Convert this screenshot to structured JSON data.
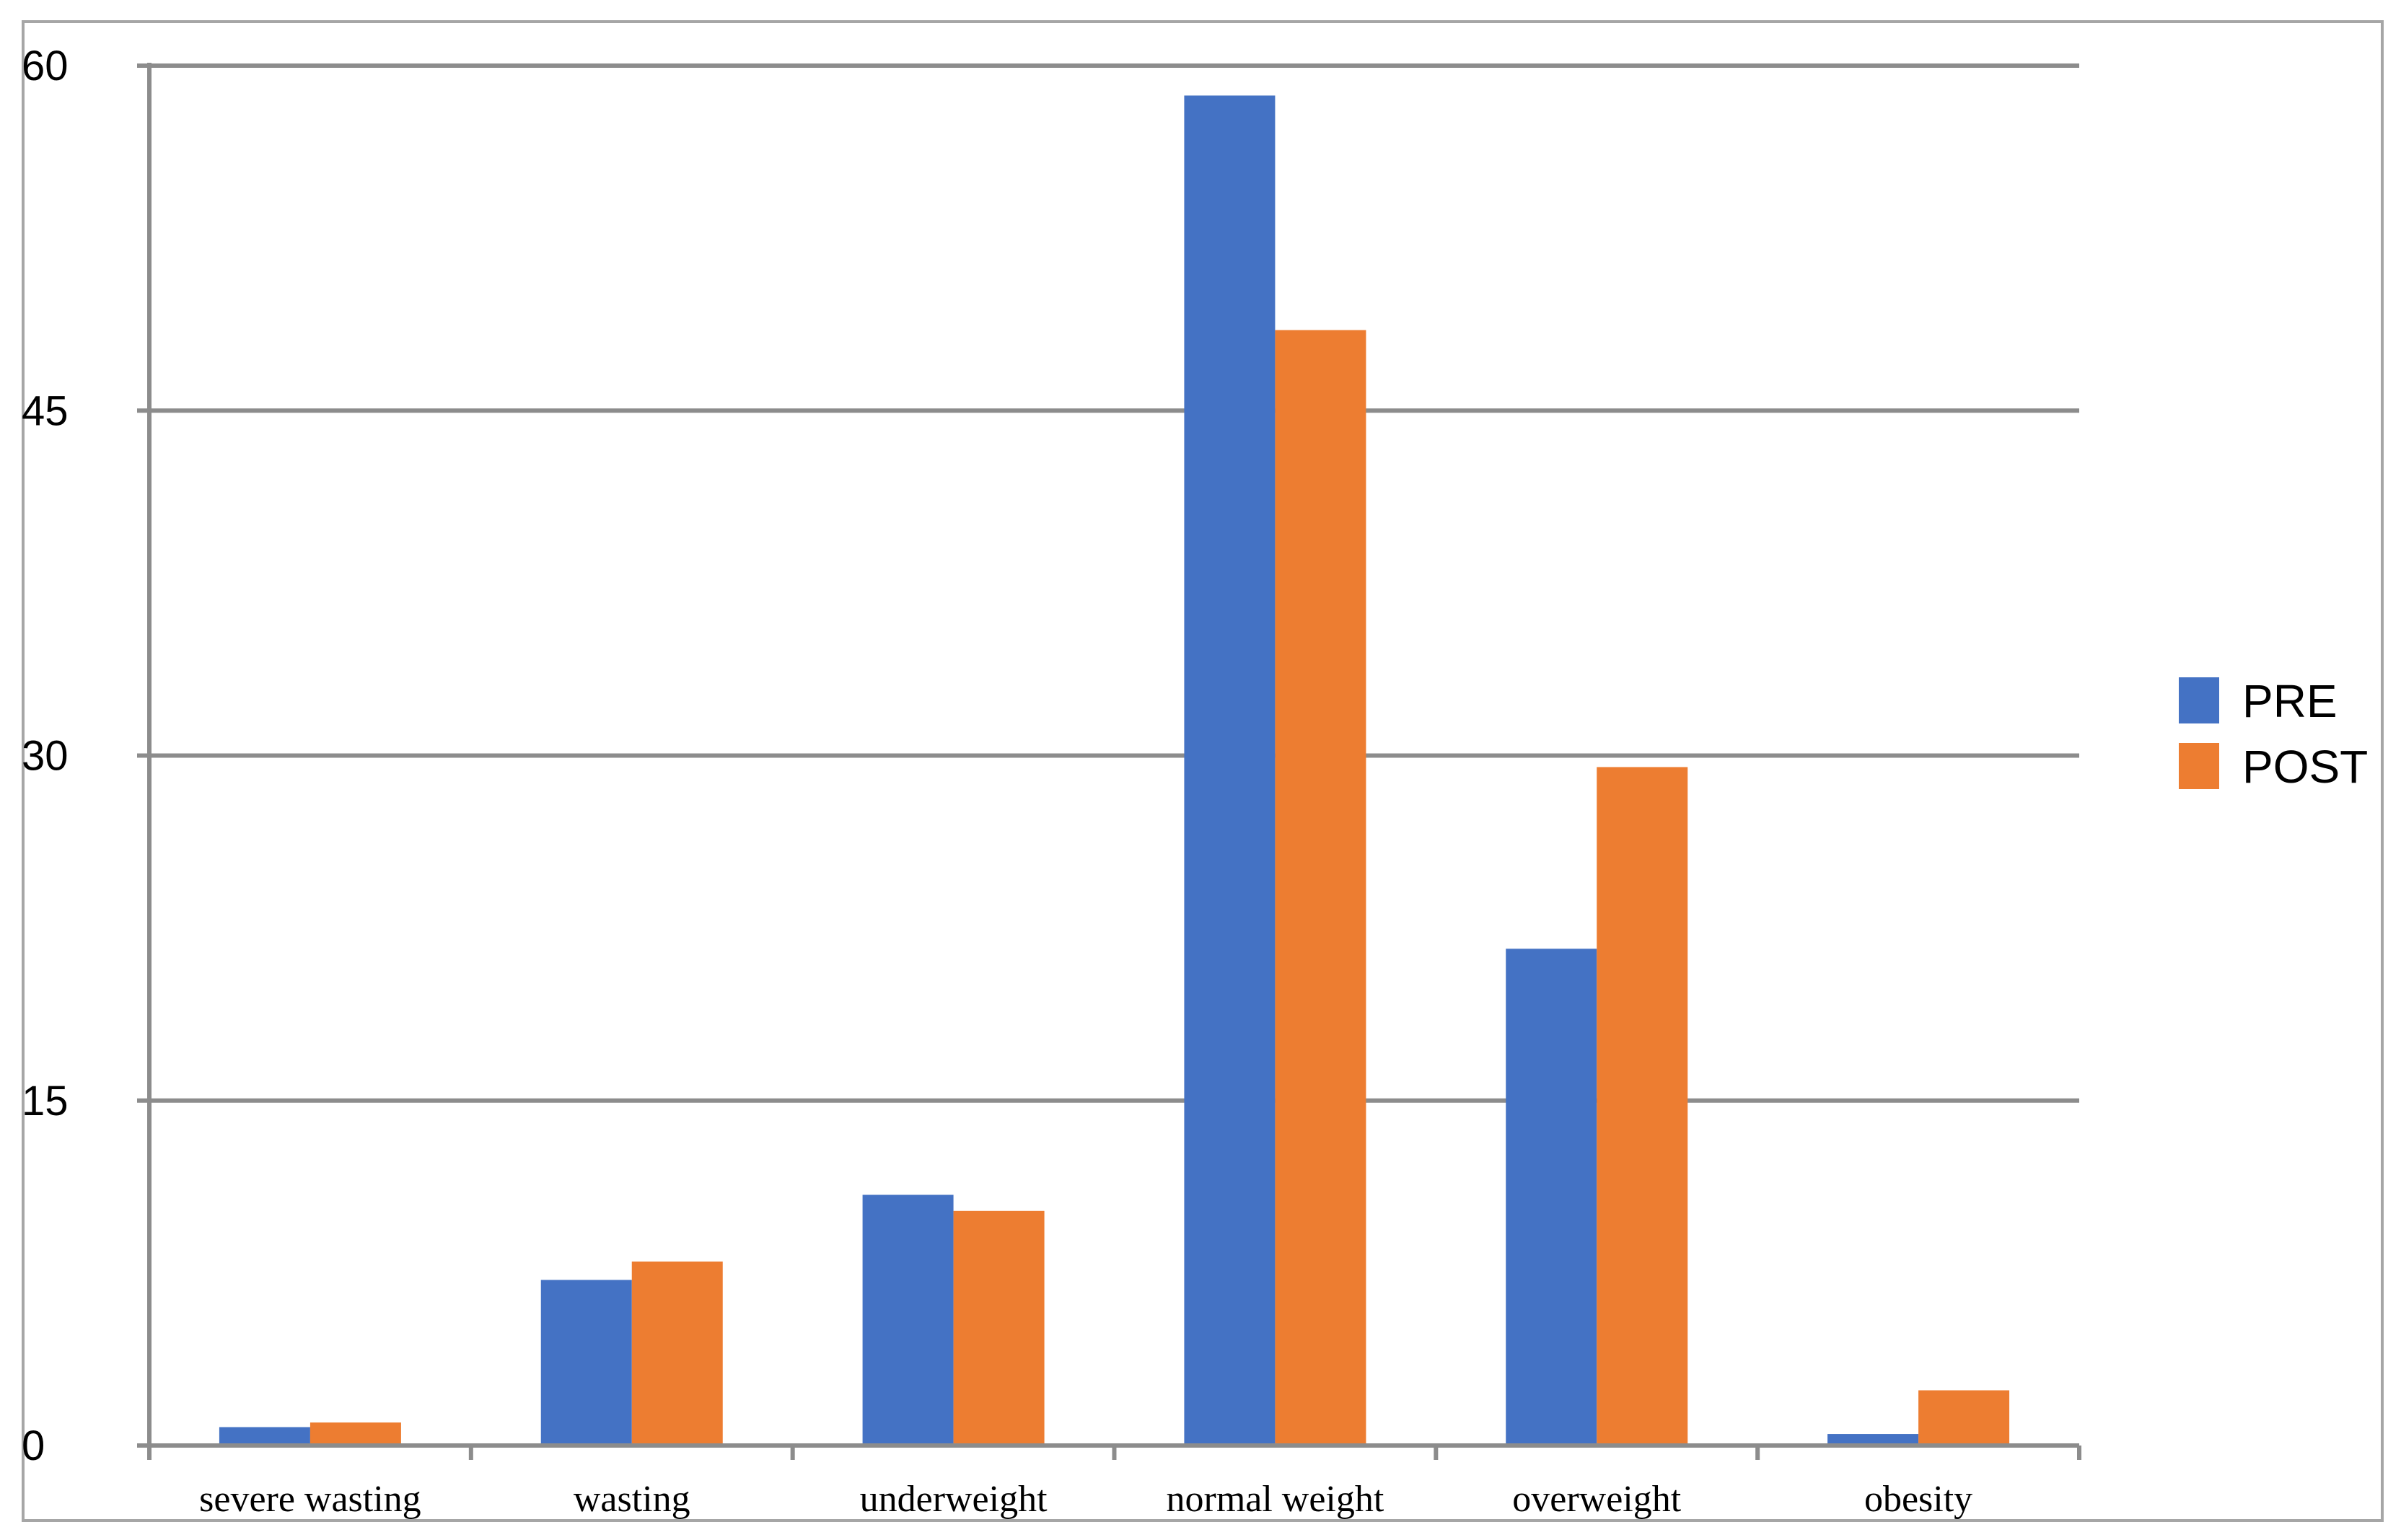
{
  "chart_data": {
    "type": "bar",
    "title": "",
    "xlabel": "",
    "ylabel": "",
    "categories": [
      "severe wasting",
      "wasting",
      "underweight",
      "normal weight",
      "overweight",
      "obesity"
    ],
    "series": [
      {
        "name": "PRE",
        "color": "#4472C4",
        "values": [
          0.8,
          7.2,
          10.9,
          58.7,
          21.6,
          0.5
        ]
      },
      {
        "name": "POST",
        "color": "#ED7D31",
        "values": [
          1.0,
          8.0,
          10.2,
          48.5,
          29.5,
          2.4
        ]
      }
    ],
    "ylim": [
      0,
      60
    ],
    "yticks": [
      0,
      15,
      30,
      45,
      60
    ],
    "grid": true,
    "legend_position": "right"
  }
}
